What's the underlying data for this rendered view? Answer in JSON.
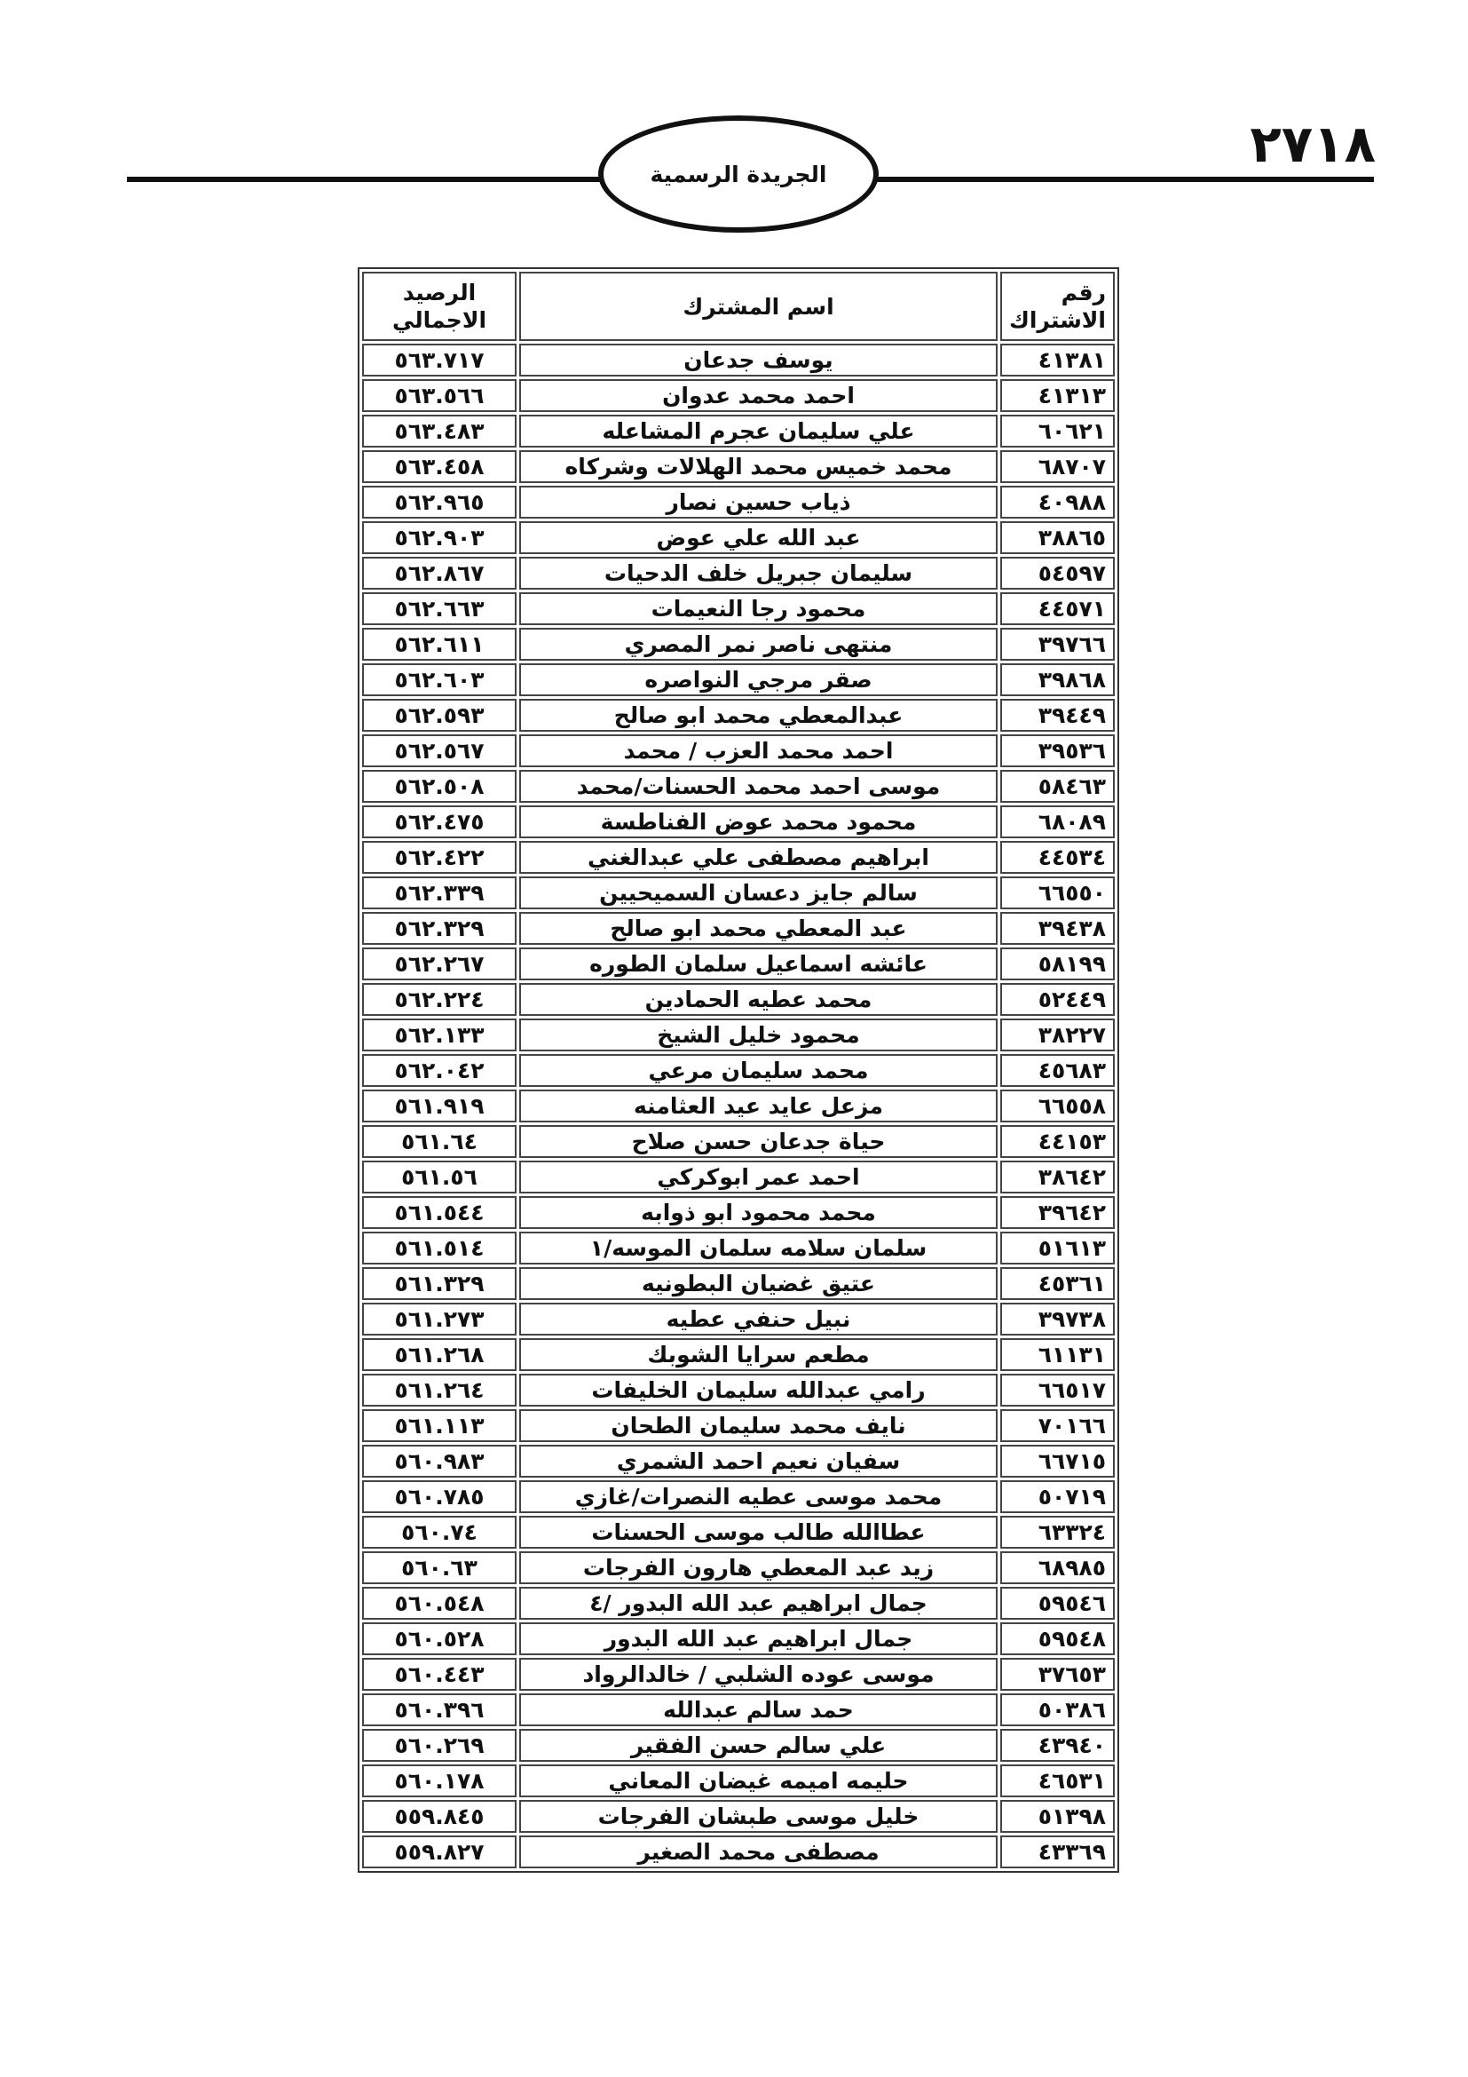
{
  "header": {
    "page_number": "٢٧١٨",
    "publication_title": "الجريدة الرسمية"
  },
  "table": {
    "columns": {
      "number": "رقم الاشتراك",
      "name": "اسم المشترك",
      "balance": "الرصيد الاجمالي"
    },
    "rows": [
      {
        "number": "٤١٣٨١",
        "name": "يوسف  جدعان",
        "balance": "٥٦٣.٧١٧"
      },
      {
        "number": "٤١٣١٣",
        "name": "احمد محمد عدوان",
        "balance": "٥٦٣.٥٦٦"
      },
      {
        "number": "٦٠٦٢١",
        "name": "علي سليمان عجرم المشاعله",
        "balance": "٥٦٣.٤٨٣"
      },
      {
        "number": "٦٨٧٠٧",
        "name": "محمد خميس محمد الهلالات وشركاه",
        "balance": "٥٦٣.٤٥٨"
      },
      {
        "number": "٤٠٩٨٨",
        "name": "ذياب  حسين نصار",
        "balance": "٥٦٢.٩٦٥"
      },
      {
        "number": "٣٨٨٦٥",
        "name": "عبد الله علي عوض",
        "balance": "٥٦٢.٩٠٣"
      },
      {
        "number": "٥٤٥٩٧",
        "name": "سليمان جبريل خلف الدحيات",
        "balance": "٥٦٢.٨٦٧"
      },
      {
        "number": "٤٤٥٧١",
        "name": "محمود رجا النعيمات",
        "balance": "٥٦٢.٦٦٣"
      },
      {
        "number": "٣٩٧٦٦",
        "name": "منتهى ناصر نمر المصري",
        "balance": "٥٦٢.٦١١"
      },
      {
        "number": "٣٩٨٦٨",
        "name": "صقر مرجي النواصره",
        "balance": "٥٦٢.٦٠٣"
      },
      {
        "number": "٣٩٤٤٩",
        "name": "عبدالمعطي محمد ابو صالح",
        "balance": "٥٦٢.٥٩٣"
      },
      {
        "number": "٣٩٥٣٦",
        "name": "احمد محمد العزب / محمد",
        "balance": "٥٦٢.٥٦٧"
      },
      {
        "number": "٥٨٤٦٣",
        "name": "موسى احمد محمد الحسنات/محمد",
        "balance": "٥٦٢.٥٠٨"
      },
      {
        "number": "٦٨٠٨٩",
        "name": "محمود محمد عوض الفناطسة",
        "balance": "٥٦٢.٤٧٥"
      },
      {
        "number": "٤٤٥٣٤",
        "name": "ابراهيم مصطفى علي عبدالغني",
        "balance": "٥٦٢.٤٢٢"
      },
      {
        "number": "٦٦٥٥٠",
        "name": "سالم جايز دعسان السميحيين",
        "balance": "٥٦٢.٣٣٩"
      },
      {
        "number": "٣٩٤٣٨",
        "name": "عبد المعطي محمد ابو صالح",
        "balance": "٥٦٢.٣٢٩"
      },
      {
        "number": "٥٨١٩٩",
        "name": "عائشه اسماعيل سلمان الطوره",
        "balance": "٥٦٢.٢٦٧"
      },
      {
        "number": "٥٢٤٤٩",
        "name": "محمد عطيه الحمادين",
        "balance": "٥٦٢.٢٢٤"
      },
      {
        "number": "٣٨٢٢٧",
        "name": "محمود خليل الشيخ",
        "balance": "٥٦٢.١٣٣"
      },
      {
        "number": "٤٥٦٨٣",
        "name": "محمد سليمان مرعي",
        "balance": "٥٦٢.٠٤٢"
      },
      {
        "number": "٦٦٥٥٨",
        "name": "مزعل عايد عيد العثامنه",
        "balance": "٥٦١.٩١٩"
      },
      {
        "number": "٤٤١٥٣",
        "name": "حياة جدعان حسن صلاح",
        "balance": "٥٦١.٦٤"
      },
      {
        "number": "٣٨٦٤٢",
        "name": "احمد عمر ابوكركي",
        "balance": "٥٦١.٥٦"
      },
      {
        "number": "٣٩٦٤٢",
        "name": "محمد محمود ابو ذوابه",
        "balance": "٥٦١.٥٤٤"
      },
      {
        "number": "٥١٦١٣",
        "name": "سلمان سلامه سلمان الموسه/١",
        "balance": "٥٦١.٥١٤"
      },
      {
        "number": "٤٥٣٦١",
        "name": "عتيق غضيان البطونيه",
        "balance": "٥٦١.٣٢٩"
      },
      {
        "number": "٣٩٧٣٨",
        "name": "نبيل حنفي عطيه",
        "balance": "٥٦١.٢٧٣"
      },
      {
        "number": "٦١١٣١",
        "name": "مطعم سرايا الشوبك",
        "balance": "٥٦١.٢٦٨"
      },
      {
        "number": "٦٦٥١٧",
        "name": "رامي عبدالله سليمان الخليفات",
        "balance": "٥٦١.٢٦٤"
      },
      {
        "number": "٧٠١٦٦",
        "name": "نايف محمد سليمان الطحان",
        "balance": "٥٦١.١١٣"
      },
      {
        "number": "٦٦٧١٥",
        "name": "سفيان نعيم احمد الشمري",
        "balance": "٥٦٠.٩٨٣"
      },
      {
        "number": "٥٠٧١٩",
        "name": "محمد موسى عطيه النصرات/غازي",
        "balance": "٥٦٠.٧٨٥"
      },
      {
        "number": "٦٣٣٢٤",
        "name": "عطاالله طالب موسى الحسنات",
        "balance": "٥٦٠.٧٤"
      },
      {
        "number": "٦٨٩٨٥",
        "name": "زيد عبد المعطي هارون الفرجات",
        "balance": "٥٦٠.٦٣"
      },
      {
        "number": "٥٩٥٤٦",
        "name": "جمال ابراهيم عبد الله البدور /٤",
        "balance": "٥٦٠.٥٤٨"
      },
      {
        "number": "٥٩٥٤٨",
        "name": "جمال ابراهيم عبد الله البدور",
        "balance": "٥٦٠.٥٢٨"
      },
      {
        "number": "٣٧٦٥٣",
        "name": "موسى عوده الشلبي / خالدالرواد",
        "balance": "٥٦٠.٤٤٣"
      },
      {
        "number": "٥٠٣٨٦",
        "name": "حمد سالم عبدالله",
        "balance": "٥٦٠.٣٩٦"
      },
      {
        "number": "٤٣٩٤٠",
        "name": "علي سالم حسن الفقير",
        "balance": "٥٦٠.٢٦٩"
      },
      {
        "number": "٤٦٥٣١",
        "name": "حليمه اميمه غيضان المعاني",
        "balance": "٥٦٠.١٧٨"
      },
      {
        "number": "٥١٣٩٨",
        "name": "خليل موسى طبشان الفرجات",
        "balance": "٥٥٩.٨٤٥"
      },
      {
        "number": "٤٣٣٦٩",
        "name": "مصطفى محمد الصغير",
        "balance": "٥٥٩.٨٢٧"
      }
    ]
  }
}
